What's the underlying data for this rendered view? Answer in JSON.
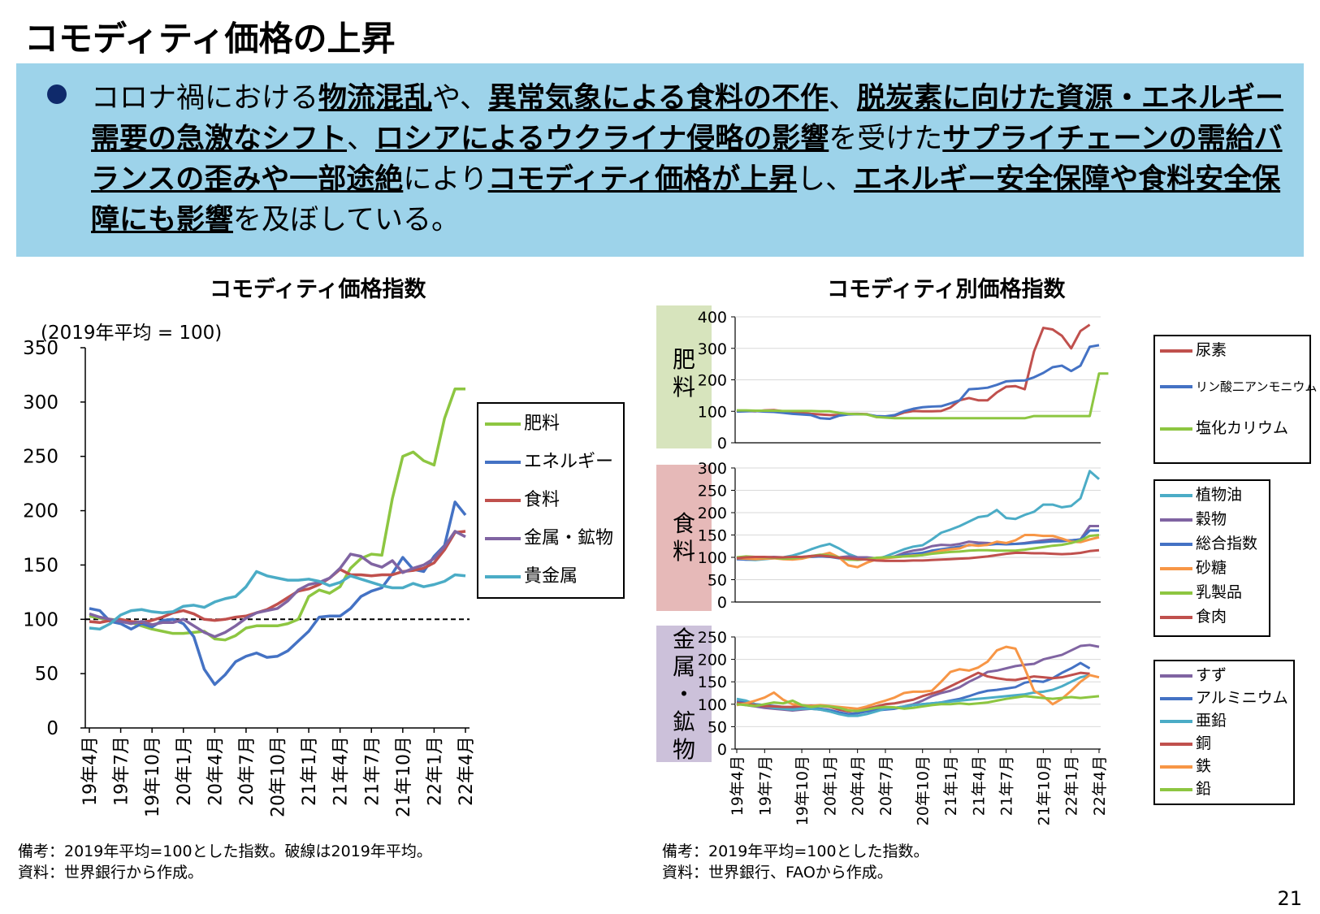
{
  "page": {
    "title": "コモディティ価格の上昇",
    "number": "21"
  },
  "banner": {
    "segments": [
      {
        "text": "コロナ禍における",
        "strong": false
      },
      {
        "text": "物流混乱",
        "strong": true
      },
      {
        "text": "や、",
        "strong": false
      },
      {
        "text": "異常気象による食料の不作",
        "strong": true
      },
      {
        "text": "、",
        "strong": false
      },
      {
        "text": "脱炭素に向けた資源・エネルギー需要の急激なシフト",
        "strong": true
      },
      {
        "text": "、",
        "strong": false
      },
      {
        "text": "ロシアによるウクライナ侵略の影響",
        "strong": true
      },
      {
        "text": "を受けた",
        "strong": false
      },
      {
        "text": "サプライチェーンの需給バランスの歪みや一部途絶",
        "strong": true
      },
      {
        "text": "により",
        "strong": false
      },
      {
        "text": "コモディティ価格が上昇",
        "strong": true
      },
      {
        "text": "し、",
        "strong": false
      },
      {
        "text": "エネルギー安全保障や食料安全保障にも影響",
        "strong": true
      },
      {
        "text": "を及ぼしている。",
        "strong": false
      }
    ]
  },
  "left_chart_text": {
    "title": "コモディティ価格指数",
    "unit": "(2019年平均 = 100)",
    "note1": "備考：2019年平均=100とした指数。破線は2019年平均。",
    "note2": "資料：世界銀行から作成。"
  },
  "right_chart_text": {
    "title": "コモディティ別価格指数",
    "note1": "備考：2019年平均=100とした指数。",
    "note2": "資料：世界銀行、FAOから作成。",
    "cat_fertilizer": [
      "肥",
      "料"
    ],
    "cat_food": [
      "食",
      "料"
    ],
    "cat_metal": [
      "金",
      "属",
      "・",
      "鉱",
      "物"
    ]
  },
  "x_tick_labels": [
    "19年4月",
    "19年7月",
    "19年10月",
    "20年1月",
    "20年4月",
    "20年7月",
    "20年10月",
    "21年1月",
    "21年4月",
    "21年7月",
    "21年10月",
    "22年1月",
    "22年4月"
  ],
  "colors": {
    "banner_bg": "#9dd3ea",
    "bullet": "#0f2a6b",
    "green": "#8dc641",
    "blue": "#4472c4",
    "red": "#c0504d",
    "purple": "#8064a2",
    "cyan": "#4bacc6",
    "orange": "#f79646",
    "cat_fertilizer_bg": "#d7e4bd",
    "cat_food_bg": "#e6b9b8",
    "cat_metal_bg": "#ccc1da"
  },
  "chart_data": [
    {
      "type": "line",
      "title": "コモディティ価格指数",
      "ylabel": "(2019年平均 = 100)",
      "ylim": [
        0,
        350
      ],
      "yticks": [
        0,
        50,
        100,
        150,
        200,
        250,
        300,
        350
      ],
      "reference_line": 100,
      "legend_position": "right",
      "x": [
        "19年4月",
        "19年5月",
        "19年6月",
        "19年7月",
        "19年8月",
        "19年9月",
        "19年10月",
        "19年11月",
        "19年12月",
        "20年1月",
        "20年2月",
        "20年3月",
        "20年4月",
        "20年5月",
        "20年6月",
        "20年7月",
        "20年8月",
        "20年9月",
        "20年10月",
        "20年11月",
        "20年12月",
        "21年1月",
        "21年2月",
        "21年3月",
        "21年4月",
        "21年5月",
        "21年6月",
        "21年7月",
        "21年8月",
        "21年9月",
        "21年10月",
        "21年11月",
        "21年12月",
        "22年1月",
        "22年2月",
        "22年3月",
        "22年4月"
      ],
      "series": [
        {
          "name": "肥料",
          "color": "#8dc641",
          "values": [
            103,
            101,
            100,
            99,
            97,
            94,
            91,
            89,
            87,
            87,
            88,
            89,
            82,
            81,
            85,
            92,
            94,
            94,
            94,
            96,
            100,
            121,
            127,
            124,
            130,
            147,
            156,
            160,
            159,
            211,
            250,
            254,
            246,
            242,
            285,
            312,
            312
          ]
        },
        {
          "name": "エネルギー",
          "color": "#4472c4",
          "values": [
            110,
            108,
            98,
            96,
            91,
            96,
            93,
            99,
            100,
            96,
            84,
            54,
            40,
            49,
            61,
            66,
            69,
            65,
            66,
            71,
            80,
            89,
            102,
            103,
            103,
            110,
            121,
            126,
            129,
            142,
            157,
            146,
            144,
            158,
            168,
            208,
            196
          ]
        },
        {
          "name": "食料",
          "color": "#c0504d",
          "values": [
            98,
            97,
            99,
            100,
            98,
            97,
            99,
            102,
            106,
            108,
            105,
            100,
            99,
            100,
            102,
            103,
            106,
            109,
            114,
            120,
            126,
            128,
            132,
            138,
            146,
            141,
            141,
            140,
            141,
            141,
            144,
            145,
            147,
            152,
            164,
            180,
            181
          ]
        },
        {
          "name": "金属・鉱物",
          "color": "#8064a2",
          "values": [
            105,
            102,
            100,
            98,
            96,
            98,
            95,
            97,
            97,
            100,
            94,
            88,
            84,
            88,
            94,
            101,
            106,
            108,
            110,
            117,
            127,
            132,
            134,
            138,
            147,
            160,
            158,
            151,
            148,
            154,
            143,
            147,
            150,
            156,
            167,
            181,
            176
          ]
        },
        {
          "name": "貴金属",
          "color": "#4bacc6",
          "values": [
            92,
            91,
            96,
            104,
            108,
            109,
            107,
            106,
            107,
            112,
            113,
            111,
            116,
            119,
            121,
            130,
            144,
            140,
            138,
            136,
            136,
            137,
            135,
            131,
            134,
            140,
            137,
            134,
            131,
            129,
            129,
            133,
            130,
            132,
            135,
            141,
            140
          ]
        }
      ]
    },
    {
      "type": "line",
      "title": "肥料",
      "ylim": [
        0,
        400
      ],
      "yticks": [
        0,
        100,
        200,
        300,
        400
      ],
      "legend_position": "right",
      "series": [
        {
          "name": "尿素",
          "color": "#c0504d",
          "values": [
            102,
            101,
            100,
            103,
            104,
            100,
            96,
            95,
            92,
            90,
            88,
            88,
            92,
            92,
            91,
            82,
            82,
            86,
            96,
            101,
            100,
            100,
            101,
            112,
            135,
            142,
            135,
            135,
            160,
            178,
            180,
            170,
            290,
            365,
            360,
            340,
            300,
            355,
            375
          ]
        },
        {
          "name": "リン酸二アンモニウム",
          "color": "#4472c4",
          "values": [
            99,
            100,
            101,
            99,
            98,
            95,
            92,
            90,
            88,
            78,
            76,
            86,
            90,
            91,
            90,
            85,
            84,
            88,
            100,
            108,
            113,
            115,
            116,
            125,
            135,
            170,
            172,
            175,
            184,
            195,
            197,
            198,
            208,
            222,
            240,
            245,
            228,
            245,
            305,
            310
          ]
        },
        {
          "name": "塩化カリウム",
          "color": "#8dc641",
          "values": [
            103,
            103,
            102,
            102,
            102,
            101,
            101,
            101,
            101,
            100,
            100,
            95,
            92,
            91,
            90,
            82,
            80,
            78,
            78,
            78,
            78,
            78,
            78,
            78,
            78,
            78,
            78,
            78,
            78,
            78,
            78,
            78,
            85,
            85,
            85,
            85,
            85,
            85,
            85,
            220,
            220
          ]
        }
      ]
    },
    {
      "type": "line",
      "title": "食料",
      "ylim": [
        0,
        300
      ],
      "yticks": [
        0,
        50,
        100,
        150,
        200,
        250,
        300
      ],
      "legend_position": "right",
      "series": [
        {
          "name": "植物油",
          "color": "#4bacc6",
          "values": [
            97,
            95,
            94,
            96,
            98,
            100,
            104,
            110,
            118,
            125,
            130,
            120,
            108,
            100,
            98,
            96,
            102,
            110,
            118,
            124,
            127,
            140,
            155,
            162,
            170,
            180,
            190,
            193,
            206,
            188,
            186,
            195,
            202,
            218,
            218,
            212,
            215,
            232,
            293,
            275
          ]
        },
        {
          "name": "穀物",
          "color": "#8064a2",
          "values": [
            100,
            98,
            99,
            100,
            101,
            100,
            100,
            101,
            102,
            104,
            102,
            100,
            102,
            100,
            100,
            98,
            99,
            102,
            110,
            115,
            118,
            125,
            128,
            127,
            130,
            135,
            133,
            132,
            130,
            130,
            130,
            132,
            135,
            138,
            140,
            138,
            138,
            140,
            170,
            170
          ]
        },
        {
          "name": "総合指数",
          "color": "#4472c4",
          "values": [
            96,
            95,
            96,
            98,
            99,
            100,
            100,
            100,
            101,
            102,
            101,
            98,
            95,
            95,
            96,
            98,
            99,
            101,
            105,
            108,
            110,
            115,
            118,
            121,
            124,
            127,
            128,
            128,
            130,
            129,
            130,
            131,
            133,
            134,
            136,
            136,
            138,
            140,
            160,
            160
          ]
        },
        {
          "name": "砂糖",
          "color": "#f79646",
          "values": [
            98,
            97,
            96,
            97,
            98,
            96,
            95,
            97,
            102,
            105,
            110,
            100,
            82,
            78,
            88,
            95,
            98,
            100,
            102,
            104,
            105,
            110,
            115,
            118,
            120,
            128,
            126,
            128,
            135,
            132,
            138,
            150,
            150,
            148,
            148,
            142,
            135,
            134,
            140,
            145
          ]
        },
        {
          "name": "乳製品",
          "color": "#8dc641",
          "values": [
            100,
            102,
            101,
            100,
            99,
            97,
            98,
            100,
            103,
            106,
            104,
            100,
            95,
            94,
            96,
            99,
            100,
            101,
            102,
            103,
            105,
            108,
            110,
            112,
            113,
            115,
            116,
            116,
            115,
            115,
            115,
            117,
            120,
            123,
            126,
            128,
            132,
            138,
            148,
            150
          ]
        },
        {
          "name": "食肉",
          "color": "#c0504d",
          "values": [
            98,
            100,
            101,
            101,
            100,
            100,
            101,
            101,
            103,
            104,
            102,
            99,
            98,
            96,
            95,
            93,
            92,
            92,
            92,
            93,
            93,
            94,
            95,
            96,
            97,
            98,
            100,
            102,
            105,
            108,
            110,
            110,
            109,
            109,
            108,
            107,
            108,
            110,
            114,
            116
          ]
        }
      ]
    },
    {
      "type": "line",
      "title": "金属・鉱物",
      "ylim": [
        0,
        250
      ],
      "yticks": [
        0,
        50,
        100,
        150,
        200,
        250
      ],
      "legend_position": "right",
      "series": [
        {
          "name": "すず",
          "color": "#8064a2",
          "values": [
            102,
            98,
            95,
            92,
            90,
            88,
            86,
            88,
            90,
            88,
            84,
            80,
            78,
            80,
            85,
            88,
            90,
            92,
            95,
            100,
            108,
            118,
            125,
            130,
            138,
            150,
            160,
            172,
            175,
            180,
            185,
            188,
            190,
            200,
            205,
            210,
            220,
            230,
            232,
            228
          ]
        },
        {
          "name": "アルミニウム",
          "color": "#4472c4",
          "values": [
            106,
            104,
            100,
            98,
            96,
            94,
            92,
            92,
            92,
            90,
            87,
            82,
            78,
            80,
            84,
            86,
            88,
            90,
            94,
            98,
            100,
            102,
            104,
            108,
            112,
            118,
            125,
            130,
            132,
            135,
            138,
            148,
            152,
            150,
            158,
            170,
            180,
            192,
            180
          ]
        },
        {
          "name": "亜鉛",
          "color": "#4bacc6",
          "values": [
            112,
            108,
            100,
            96,
            92,
            90,
            88,
            90,
            90,
            88,
            84,
            78,
            74,
            74,
            78,
            84,
            90,
            92,
            95,
            98,
            100,
            102,
            104,
            106,
            108,
            110,
            112,
            114,
            116,
            118,
            120,
            122,
            126,
            128,
            132,
            140,
            150,
            160,
            165
          ]
        },
        {
          "name": "銅",
          "color": "#c0504d",
          "values": [
            103,
            101,
            98,
            96,
            95,
            94,
            94,
            96,
            97,
            96,
            94,
            88,
            84,
            86,
            90,
            95,
            100,
            102,
            106,
            110,
            118,
            124,
            130,
            140,
            150,
            160,
            170,
            162,
            158,
            155,
            154,
            158,
            162,
            160,
            158,
            160,
            165,
            170,
            168
          ]
        },
        {
          "name": "鉄",
          "color": "#f79646",
          "values": [
            98,
            102,
            108,
            115,
            126,
            110,
            100,
            98,
            96,
            98,
            96,
            94,
            92,
            90,
            95,
            102,
            108,
            115,
            125,
            128,
            128,
            130,
            150,
            172,
            178,
            175,
            182,
            195,
            220,
            228,
            224,
            180,
            130,
            118,
            100,
            112,
            130,
            150,
            165,
            160
          ]
        },
        {
          "name": "鉛",
          "color": "#8dc641",
          "values": [
            100,
            98,
            96,
            100,
            104,
            102,
            108,
            98,
            94,
            96,
            95,
            92,
            86,
            85,
            88,
            92,
            94,
            93,
            90,
            92,
            95,
            98,
            100,
            100,
            102,
            100,
            102,
            104,
            108,
            112,
            115,
            118,
            116,
            114,
            112,
            114,
            116,
            114,
            116,
            118
          ]
        }
      ]
    }
  ]
}
